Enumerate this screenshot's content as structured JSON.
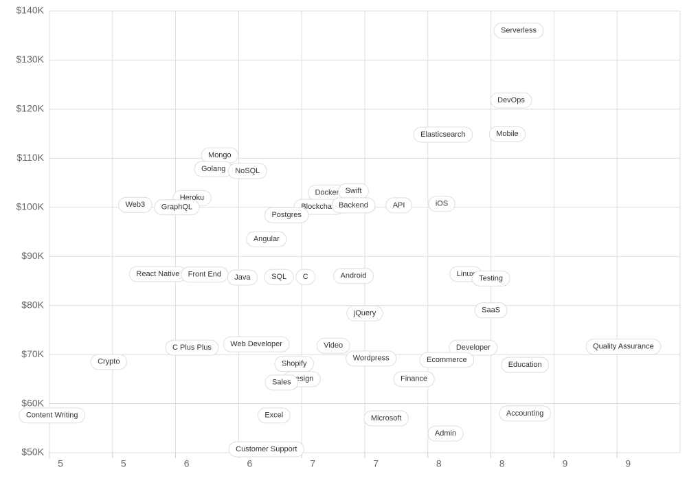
{
  "chart_data": {
    "type": "scatter",
    "xlim": [
      4.5,
      9.5
    ],
    "ylim": [
      50000,
      140000
    ],
    "xticks": [
      {
        "value": 4.5,
        "label": "5"
      },
      {
        "value": 5,
        "label": "5"
      },
      {
        "value": 5.5,
        "label": "6"
      },
      {
        "value": 6,
        "label": "6"
      },
      {
        "value": 6.5,
        "label": "7"
      },
      {
        "value": 7,
        "label": "7"
      },
      {
        "value": 7.5,
        "label": "8"
      },
      {
        "value": 8,
        "label": "8"
      },
      {
        "value": 8.5,
        "label": "9"
      },
      {
        "value": 9,
        "label": "9"
      }
    ],
    "yticks": [
      {
        "value": 50000,
        "label": "$50K"
      },
      {
        "value": 60000,
        "label": "$60K"
      },
      {
        "value": 70000,
        "label": "$70K"
      },
      {
        "value": 80000,
        "label": "$80K"
      },
      {
        "value": 90000,
        "label": "$90K"
      },
      {
        "value": 100000,
        "label": "$100K"
      },
      {
        "value": 110000,
        "label": "$110K"
      },
      {
        "value": 120000,
        "label": "$120K"
      },
      {
        "value": 130000,
        "label": "$130K"
      },
      {
        "value": 140000,
        "label": "$140K"
      }
    ],
    "grid": true,
    "point_labels": [
      "Serverless",
      "DevOps",
      "Mobile",
      "Elasticsearch",
      "Mongo",
      "Golang",
      "NoSQL",
      "Docker",
      "Swift",
      "Heroku",
      "Web3",
      "GraphQL",
      "Blockchain",
      "Backend",
      "API",
      "iOS",
      "Postgres",
      "Angular",
      "React Native",
      "Front End",
      "Java",
      "SQL",
      "C",
      "Android",
      "Linux",
      "Testing",
      "jQuery",
      "SaaS",
      "C Plus Plus",
      "Web Developer",
      "Video",
      "Developer",
      "Quality Assurance",
      "Crypto",
      "Wordpress",
      "Shopify",
      "Ecommerce",
      "Education",
      "Design",
      "Finance",
      "Sales",
      "Content Writing",
      "Excel",
      "Accounting",
      "Microsoft",
      "Admin",
      "Customer Support"
    ],
    "x": [
      8.22,
      8.16,
      8.13,
      7.62,
      5.85,
      5.8,
      6.07,
      6.7,
      6.91,
      5.63,
      5.18,
      5.51,
      6.64,
      6.91,
      7.27,
      7.61,
      6.38,
      6.22,
      5.36,
      5.73,
      6.03,
      6.32,
      6.53,
      6.91,
      7.8,
      8.0,
      7.0,
      8.0,
      5.63,
      6.14,
      6.75,
      7.86,
      9.05,
      4.97,
      7.05,
      6.44,
      7.65,
      8.27,
      6.5,
      7.39,
      6.34,
      4.52,
      6.28,
      8.27,
      7.17,
      7.64,
      6.22
    ],
    "values": [
      136000,
      121800,
      114900,
      114800,
      110600,
      107800,
      107400,
      103000,
      103300,
      101900,
      100500,
      100000,
      100100,
      100400,
      100400,
      100700,
      98400,
      93500,
      86400,
      86300,
      85700,
      85800,
      85800,
      86000,
      86400,
      85500,
      78400,
      79000,
      71400,
      72100,
      71800,
      71400,
      71600,
      68500,
      69200,
      68100,
      68900,
      67900,
      65000,
      65000,
      64300,
      57600,
      57600,
      58000,
      57000,
      53900,
      50700
    ]
  }
}
